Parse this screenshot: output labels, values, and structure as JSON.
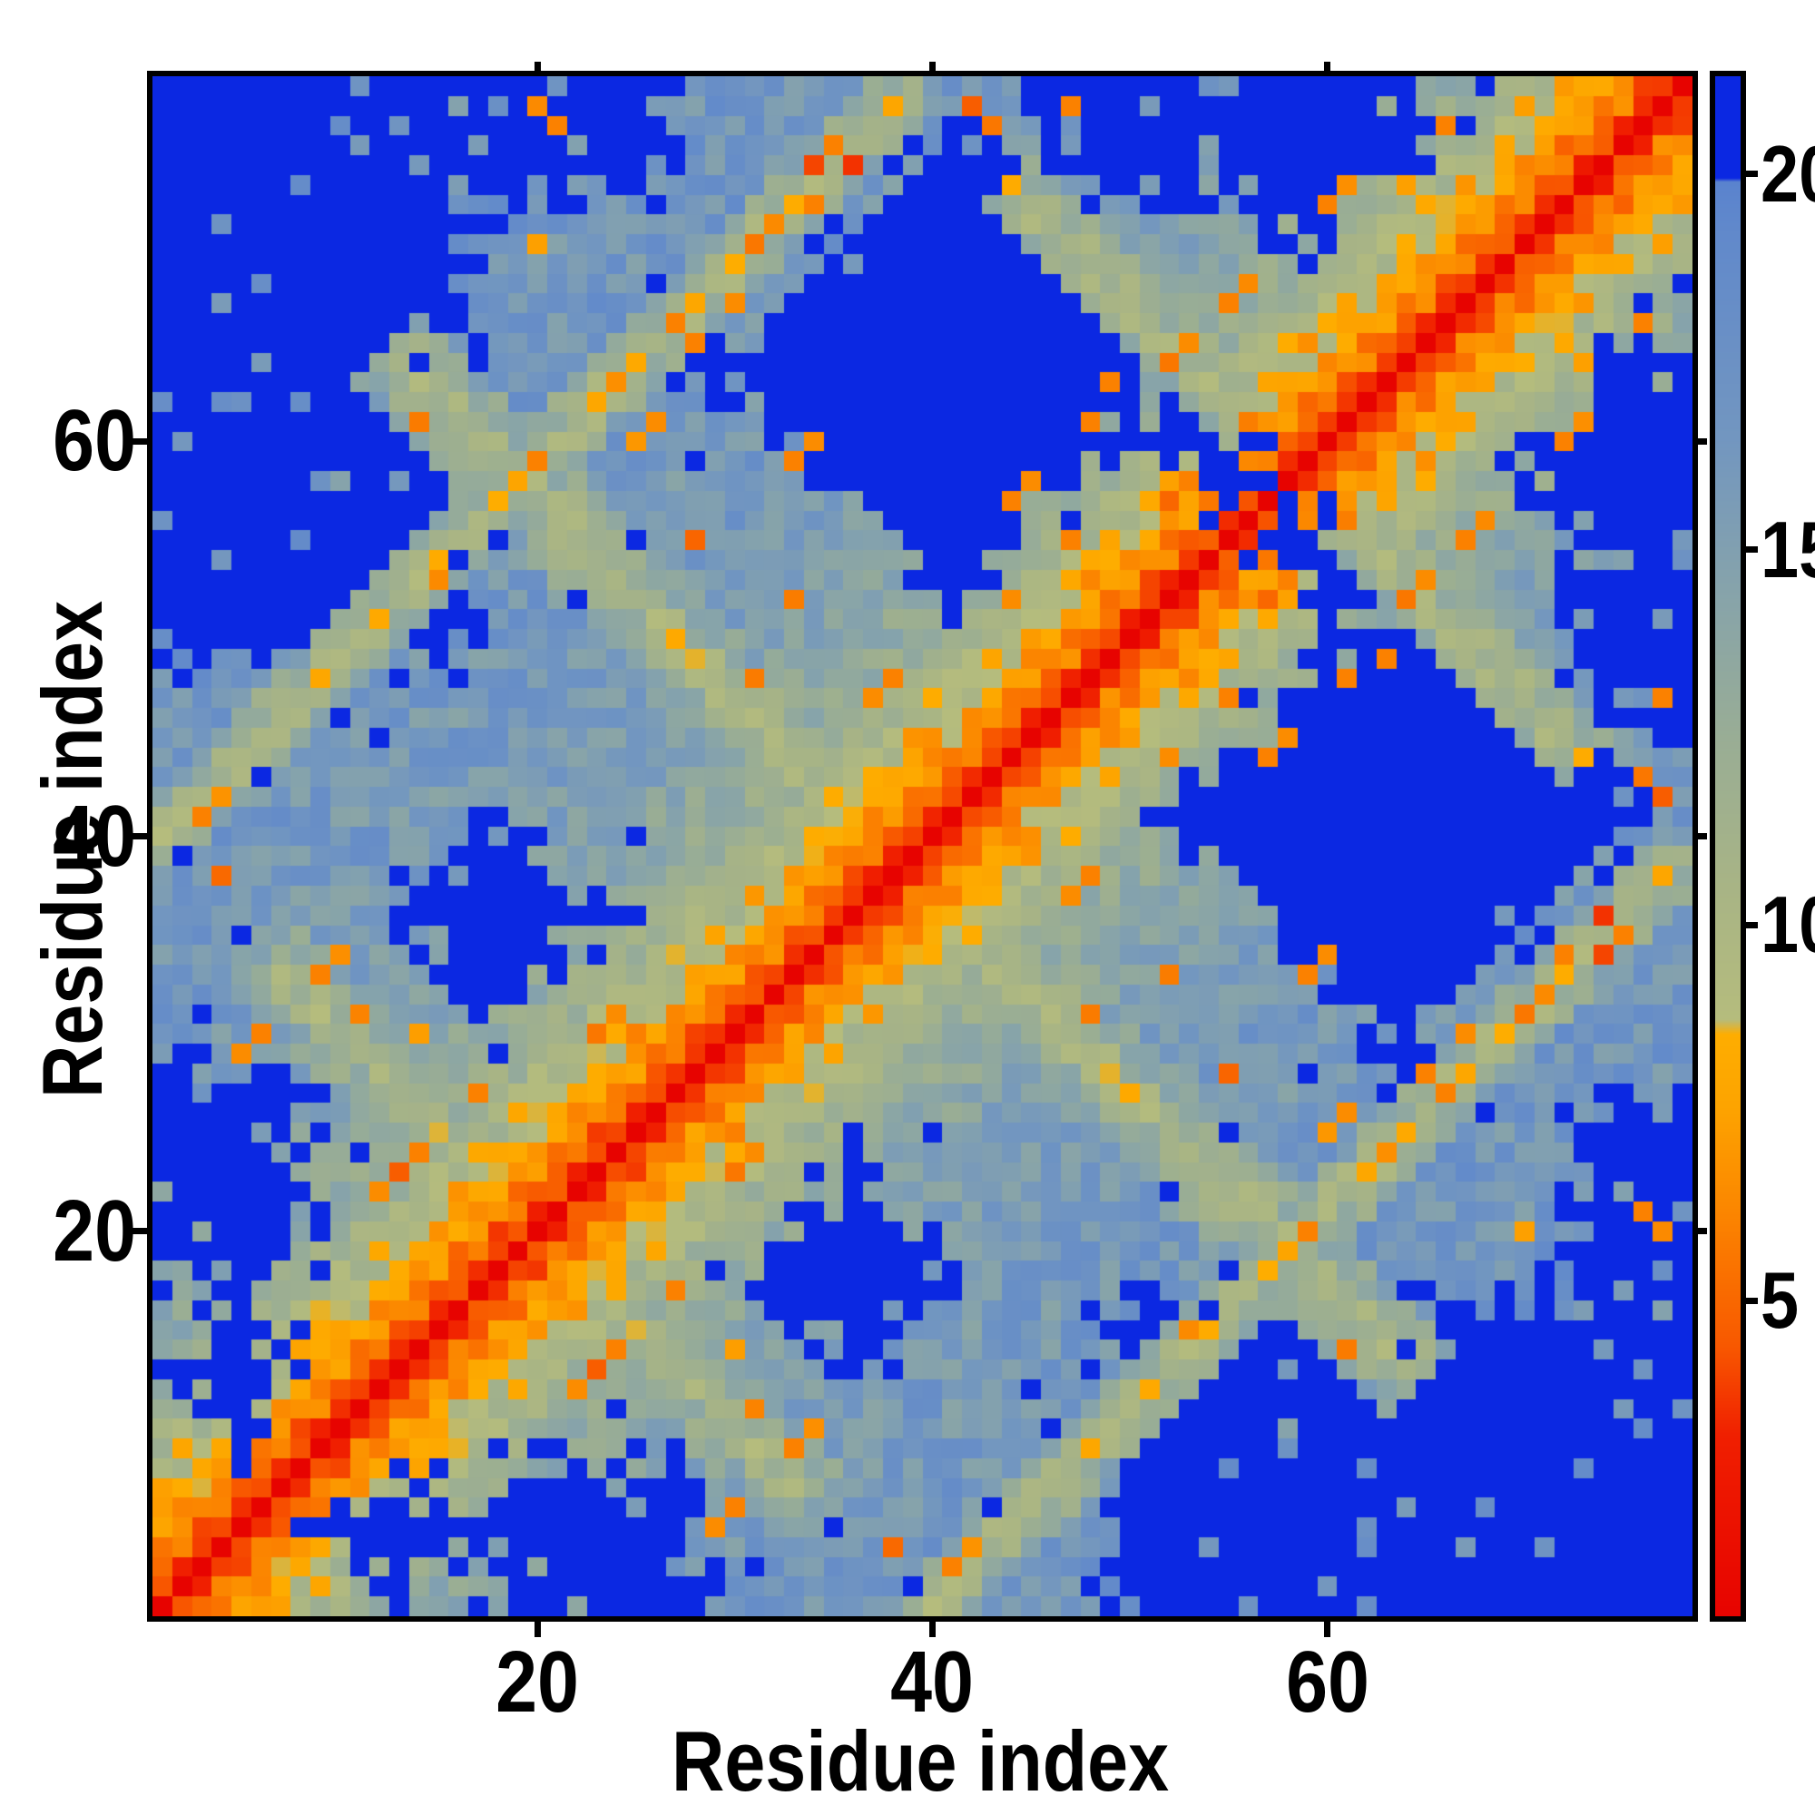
{
  "figure": {
    "background": "#ffffff",
    "frame_color": "#000000"
  },
  "chart_data": {
    "type": "heatmap",
    "title": "",
    "xlabel": "Residue index",
    "ylabel": "Residue index",
    "x_ticks": [
      20,
      40,
      60
    ],
    "y_ticks": [
      20,
      40,
      60
    ],
    "x_range": [
      1,
      78
    ],
    "y_range": [
      1,
      78
    ],
    "n_residues": 78,
    "grid": false,
    "colorbar": {
      "position": "right",
      "ticks": [
        5,
        10,
        15,
        20
      ],
      "value_min": 0.8,
      "value_max": 21.3,
      "stops": [
        [
          0.8,
          "#e70300"
        ],
        [
          3.2,
          "#f01f00"
        ],
        [
          4.4,
          "#f85800"
        ],
        [
          6.2,
          "#fb8600"
        ],
        [
          7.6,
          "#fda400"
        ],
        [
          8.55,
          "#fead00"
        ],
        [
          8.75,
          "#b5bc7d"
        ],
        [
          10.5,
          "#a8b485"
        ],
        [
          12.5,
          "#99ad95"
        ],
        [
          14.5,
          "#86a3ab"
        ],
        [
          16.5,
          "#7296c0"
        ],
        [
          19.2,
          "#6189cb"
        ],
        [
          19.9,
          "#5a83ce"
        ],
        [
          19.95,
          "#0b28e2"
        ],
        [
          21.3,
          "#0b28e2"
        ]
      ]
    },
    "matrix_model": {
      "note": "Symmetric 78x78 residue-residue distance map estimated from the figure: red diagonal band (short distances), checkered orange flanks, sage mid-range band, steel-blue long range, saturated blue where distance exceeds ~20, plus repeat-contact ridges, far-apart blue regions and scattered orange contact spots.",
      "seed": 7,
      "diag_value": 0.8,
      "value_min": 0.8,
      "value_max": 21.3,
      "blue_level": 20.8,
      "base_coeff": 3.1,
      "base_power": 0.56,
      "checker_amp": 1.25,
      "noise_amp_near": 1.1,
      "noise_amp_mid": 3.4,
      "noise_amp_far": 4.4,
      "blue_salt": 0.025,
      "contact_salt": 0.012,
      "far_regions": [
        {
          "shape": "rect",
          "x": [
            1,
            15
          ],
          "y": [
            50,
            78
          ]
        },
        {
          "shape": "rect",
          "x": [
            1,
            7
          ],
          "y": [
            19,
            27
          ]
        },
        {
          "shape": "rect",
          "x": [
            46,
            53
          ],
          "y": [
            74,
            78
          ]
        },
        {
          "shape": "rect",
          "x": [
            19,
            25
          ],
          "y": [
            74,
            78
          ]
        },
        {
          "shape": "diamond",
          "c": [
            18,
            36
          ],
          "r": 4.5
        },
        {
          "shape": "diamond",
          "c": [
            41,
            64
          ],
          "r": 11
        },
        {
          "shape": "diamond",
          "c": [
            59,
            76
          ],
          "r": 6
        },
        {
          "shape": "diamond",
          "c": [
            54,
            60
          ],
          "r": 2.5
        },
        {
          "shape": "diamond",
          "c": [
            5,
            13
          ],
          "r": 2.5
        }
      ],
      "ridges": [
        {
          "kind": "parallel",
          "offset": 39,
          "halfwidth": 2.5,
          "level": 9.8,
          "span": [
            1,
            39
          ]
        },
        {
          "kind": "anti",
          "sum": 40,
          "halfwidth": 2.2,
          "level": 10.5,
          "kspan": [
            5,
            27
          ]
        },
        {
          "kind": "anti",
          "sum": 77,
          "halfwidth": 2.4,
          "level": 10.2,
          "kspan": [
            5,
            52
          ]
        },
        {
          "kind": "anti",
          "sum": 117,
          "halfwidth": 2.0,
          "level": 10.2,
          "kspan": [
            5,
            29
          ]
        }
      ],
      "contacts": [
        [
          3,
          41,
          6
        ],
        [
          4,
          42,
          6.8
        ],
        [
          15,
          53,
          6.4
        ],
        [
          20,
          59,
          6
        ],
        [
          24,
          63,
          6.6
        ],
        [
          27,
          66,
          6
        ],
        [
          31,
          70,
          5.6
        ],
        [
          32,
          71,
          6.4
        ],
        [
          34,
          72,
          6
        ],
        [
          34,
          74,
          4
        ],
        [
          36,
          74,
          3.6
        ],
        [
          35,
          75,
          6
        ],
        [
          30,
          67,
          6.5
        ],
        [
          28,
          65,
          6
        ],
        [
          25,
          60,
          7
        ],
        [
          26,
          61,
          6.5
        ],
        [
          42,
          77,
          4.6
        ],
        [
          43,
          76,
          5.6
        ],
        [
          47,
          77,
          6
        ],
        [
          20,
          77,
          6.4
        ],
        [
          21,
          76,
          6
        ],
        [
          13,
          23,
          4.6
        ],
        [
          14,
          24,
          6
        ],
        [
          12,
          22,
          6.5
        ],
        [
          17,
          27,
          6
        ],
        [
          23,
          30,
          5.6
        ],
        [
          24,
          31,
          6.5
        ],
        [
          9,
          33,
          6
        ],
        [
          10,
          34,
          6.6
        ],
        [
          44,
          57,
          6
        ],
        [
          45,
          58,
          6.5
        ],
        [
          48,
          61,
          6
        ],
        [
          52,
          64,
          5.6
        ],
        [
          53,
          65,
          6.5
        ],
        [
          49,
          63,
          6
        ],
        [
          55,
          67,
          6
        ],
        [
          44,
          52,
          6.5
        ],
        [
          47,
          55,
          6
        ],
        [
          56,
          68,
          6.4
        ],
        [
          60,
          72,
          6
        ],
        [
          61,
          73,
          6.6
        ],
        [
          66,
          76,
          6
        ],
        [
          5,
          29,
          6.5
        ],
        [
          6,
          30,
          6
        ],
        [
          37,
          47,
          6.5
        ],
        [
          38,
          48,
          6
        ],
        [
          33,
          59,
          6
        ],
        [
          34,
          60,
          6.5
        ],
        [
          52,
          57,
          5
        ],
        [
          53,
          58,
          6
        ]
      ]
    }
  }
}
